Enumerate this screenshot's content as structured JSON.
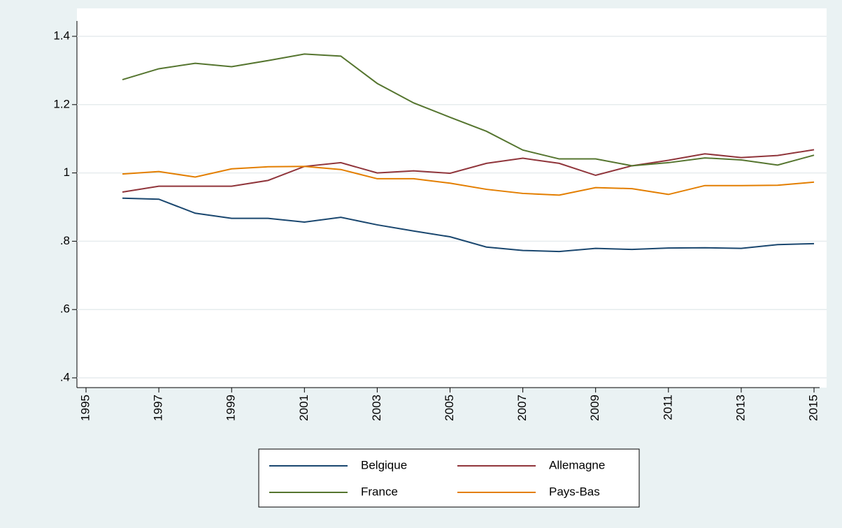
{
  "chart_data": {
    "type": "line",
    "x": [
      1996,
      1997,
      1998,
      1999,
      2000,
      2001,
      2002,
      2003,
      2004,
      2005,
      2006,
      2007,
      2008,
      2009,
      2010,
      2011,
      2012,
      2013,
      2014,
      2015
    ],
    "series": [
      {
        "name": "Belgique",
        "color": "#1a476f",
        "values": [
          0.926,
          0.923,
          0.882,
          0.867,
          0.867,
          0.856,
          0.87,
          0.848,
          0.83,
          0.813,
          0.783,
          0.773,
          0.77,
          0.779,
          0.776,
          0.78,
          0.781,
          0.779,
          0.79,
          0.793
        ]
      },
      {
        "name": "Allemagne",
        "color": "#90353b",
        "values": [
          0.944,
          0.961,
          0.961,
          0.961,
          0.978,
          1.019,
          1.03,
          1.0,
          1.006,
          0.999,
          1.028,
          1.043,
          1.028,
          0.993,
          1.021,
          1.037,
          1.056,
          1.045,
          1.051,
          1.068
        ]
      },
      {
        "name": "France",
        "color": "#55752f",
        "values": [
          1.273,
          1.305,
          1.321,
          1.311,
          1.329,
          1.348,
          1.342,
          1.262,
          1.205,
          1.163,
          1.122,
          1.067,
          1.041,
          1.041,
          1.021,
          1.03,
          1.044,
          1.038,
          1.023,
          1.052
        ]
      },
      {
        "name": "Pays-Bas",
        "color": "#e37e00",
        "values": [
          0.997,
          1.004,
          0.988,
          1.012,
          1.018,
          1.019,
          1.01,
          0.983,
          0.983,
          0.97,
          0.952,
          0.94,
          0.935,
          0.957,
          0.954,
          0.937,
          0.963,
          0.963,
          0.964,
          0.973
        ]
      }
    ],
    "xlim": [
      1995,
      2015
    ],
    "xticks": [
      1995,
      1997,
      1999,
      2001,
      2003,
      2005,
      2007,
      2009,
      2011,
      2013,
      2015
    ],
    "ylim": [
      0.4,
      1.4
    ],
    "yticks": [
      {
        "value": 0.4,
        "label": ".4"
      },
      {
        "value": 0.6,
        "label": ".6"
      },
      {
        "value": 0.8,
        "label": ".8"
      },
      1,
      1.2,
      1.4
    ],
    "grid": true,
    "legend": "bottom"
  }
}
